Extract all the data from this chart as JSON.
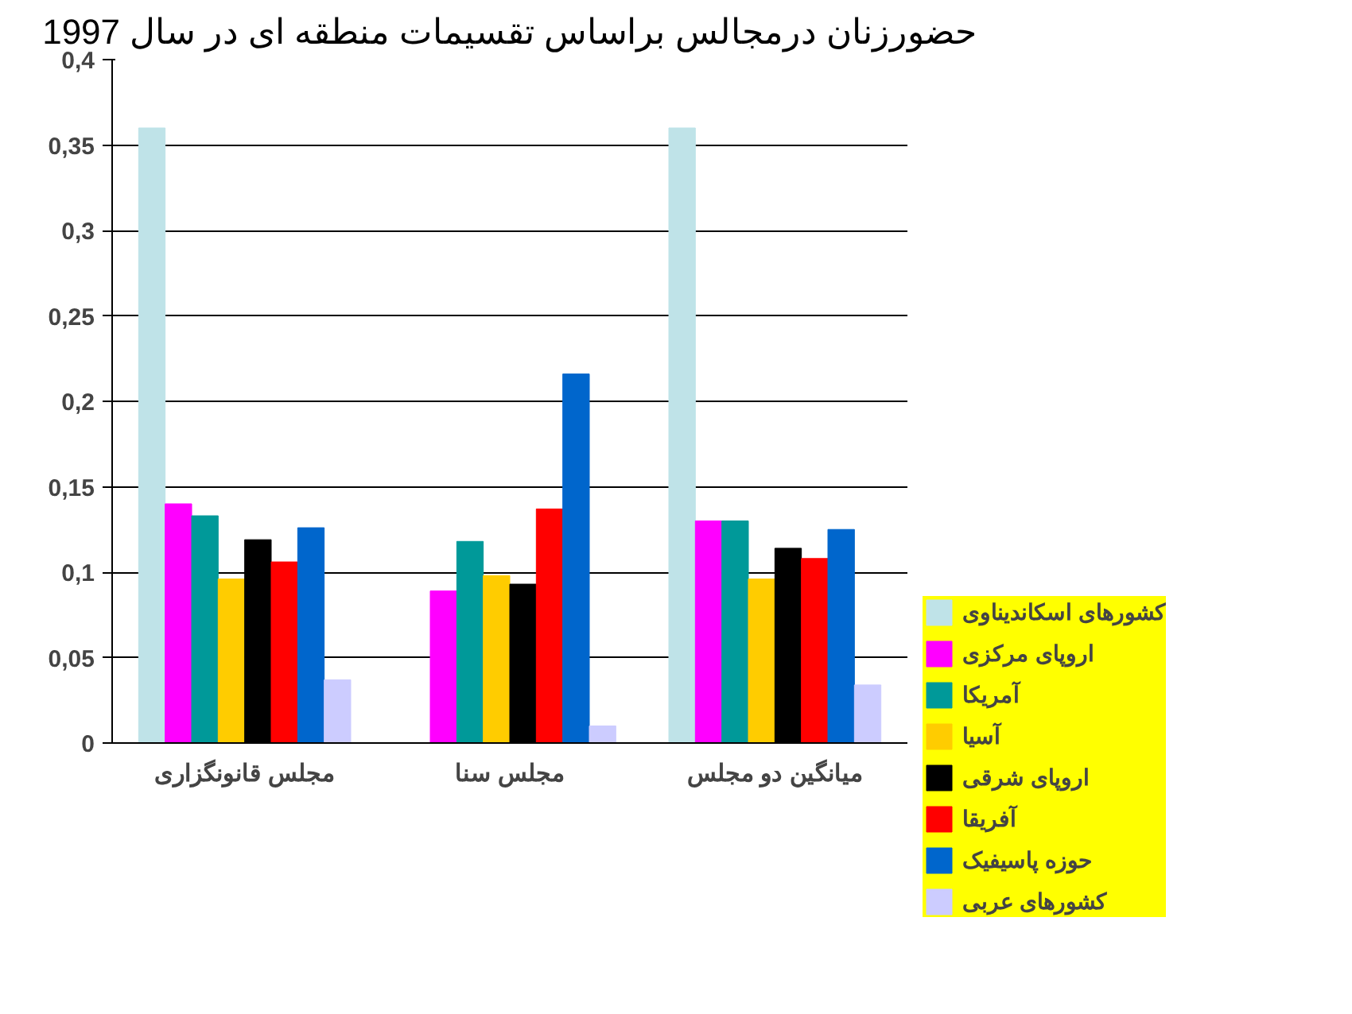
{
  "chart_data": {
    "type": "bar",
    "title": "حضورزنان درمجالس براساس تقسیمات منطقه ای در سال 1997",
    "categories": [
      "مجلس قانونگزاری",
      "مجلس سنا",
      "میانگین دو مجلس"
    ],
    "series": [
      {
        "name": "کشورهای اسکاندیناوی",
        "color": "#bfe3e8",
        "values": [
          0.36,
          0,
          0.36
        ]
      },
      {
        "name": "اروپای مرکزی",
        "color": "#ff00ff",
        "values": [
          0.14,
          0.089,
          0.13
        ]
      },
      {
        "name": "آمریکا",
        "color": "#009999",
        "values": [
          0.133,
          0.118,
          0.13
        ]
      },
      {
        "name": "آسیا",
        "color": "#ffcc00",
        "values": [
          0.096,
          0.098,
          0.096
        ]
      },
      {
        "name": "اروپای شرقی",
        "color": "#000000",
        "values": [
          0.119,
          0.093,
          0.114
        ]
      },
      {
        "name": "آفریقا",
        "color": "#ff0000",
        "values": [
          0.106,
          0.137,
          0.108
        ]
      },
      {
        "name": "حوزه پاسیفیک",
        "color": "#0066cc",
        "values": [
          0.126,
          0.216,
          0.125
        ]
      },
      {
        "name": "کشورهای عربی",
        "color": "#ccccff",
        "values": [
          0.037,
          0.01,
          0.034
        ]
      }
    ],
    "ylim": [
      0,
      0.4
    ],
    "yticks": [
      0,
      {
        "value": 0.05,
        "label": "0,05"
      },
      {
        "value": 0.1,
        "label": "0,1"
      },
      {
        "value": 0.15,
        "label": "0,15"
      },
      {
        "value": 0.2,
        "label": "0,2"
      },
      {
        "value": 0.25,
        "label": "0,25"
      },
      {
        "value": 0.3,
        "label": "0,3"
      },
      {
        "value": 0.35,
        "label": "0,35"
      },
      {
        "value": 0.4,
        "label": "0,4"
      }
    ],
    "grid": "y",
    "legend": "right"
  }
}
